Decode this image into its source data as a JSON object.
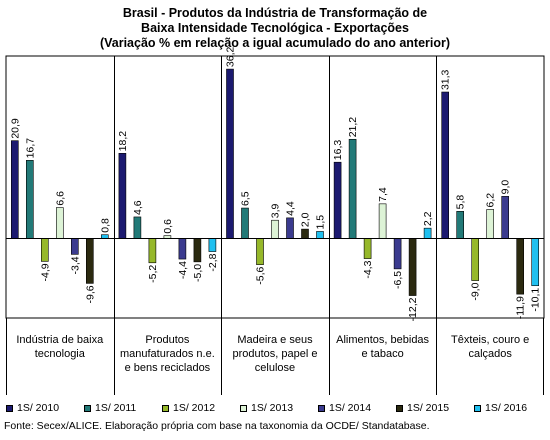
{
  "chart_data": {
    "type": "bar",
    "title": [
      "Brasil - Produtos da Indústria de Transformação de",
      "Baixa Intensidade Tecnológica - Exportações",
      "(Variação % em relação a igual acumulado do ano anterior)"
    ],
    "categories": [
      "Indústria de baixa tecnologia",
      "Produtos manufaturados n.e. e bens reciclados",
      "Madeira e seus produtos, papel e celulose",
      "Alimentos, bebidas e tabaco",
      "Têxteis, couro e calçados"
    ],
    "series": [
      {
        "name": "1S/ 2010",
        "color": "#1c1a70",
        "values": [
          20.9,
          18.2,
          36.2,
          16.3,
          31.3
        ]
      },
      {
        "name": "1S/ 2011",
        "color": "#227a78",
        "values": [
          16.7,
          4.6,
          6.5,
          21.2,
          5.8
        ]
      },
      {
        "name": "1S/ 2012",
        "color": "#96b82a",
        "values": [
          -4.9,
          -5.2,
          -5.6,
          -4.3,
          -9.0
        ]
      },
      {
        "name": "1S/ 2013",
        "color": "#ddf3d6",
        "values": [
          6.6,
          0.6,
          3.9,
          7.4,
          6.2
        ]
      },
      {
        "name": "1S/ 2014",
        "color": "#3b3b8f",
        "values": [
          -3.4,
          -4.4,
          4.4,
          -6.5,
          9.0
        ]
      },
      {
        "name": "1S/ 2015",
        "color": "#2b2a10",
        "values": [
          -9.6,
          -5.0,
          2.0,
          -12.2,
          -11.9
        ]
      },
      {
        "name": "1S/ 2016",
        "color": "#20c0f0",
        "values": [
          0.8,
          -2.8,
          1.5,
          2.2,
          -10.1
        ]
      }
    ],
    "value_labels": [
      [
        "20,9",
        "18,2",
        "36,2",
        "16,3",
        "31,3"
      ],
      [
        "16,7",
        "4,6",
        "6,5",
        "21,2",
        "5,8"
      ],
      [
        "-4,9",
        "-5,2",
        "-5,6",
        "-4,3",
        "-9,0"
      ],
      [
        "6,6",
        "0,6",
        "3,9",
        "7,4",
        "6,2"
      ],
      [
        "-3,4",
        "-4,4",
        "4,4",
        "-6,5",
        "9,0"
      ],
      [
        "-9,6",
        "-5,0",
        "2,0",
        "-12,2",
        "-11,9"
      ],
      [
        "0,8",
        "-2,8",
        "1,5",
        "2,2",
        "-10,1"
      ]
    ],
    "ylim": [
      -17,
      39
    ],
    "legend_position": "bottom",
    "grid": false
  },
  "source": "Fonte: Secex/ALICE. Elaboração própria com base na taxonomia da OCDE/ Standatabase."
}
